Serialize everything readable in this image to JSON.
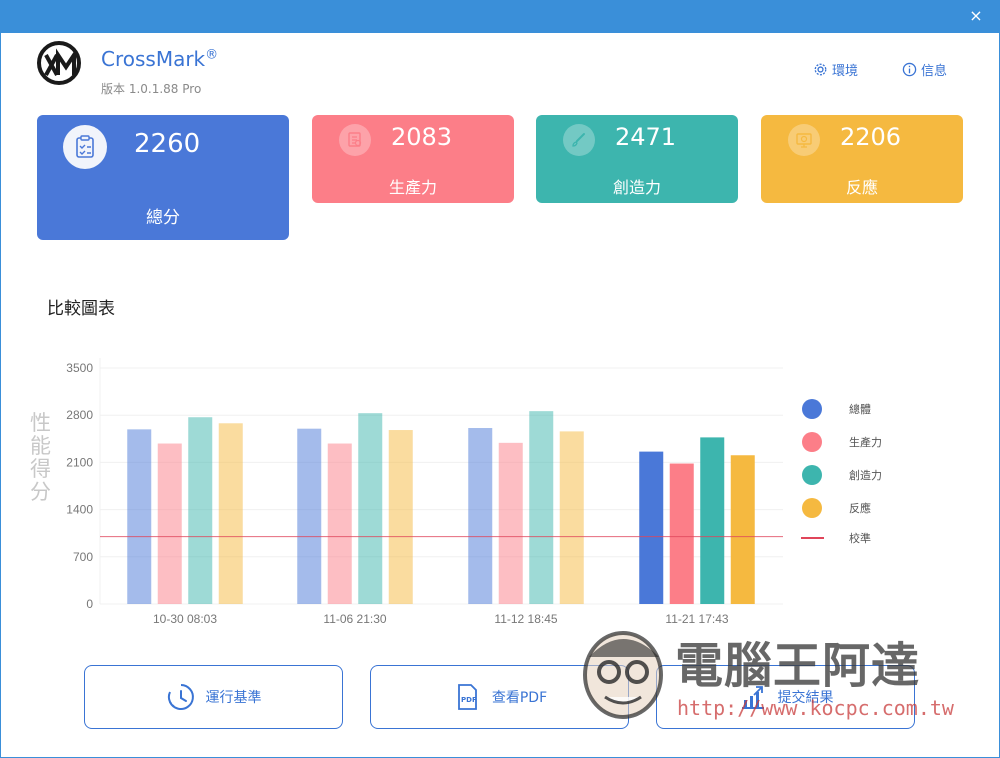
{
  "window": {
    "close_label": "×"
  },
  "app": {
    "name": "CrossMark",
    "reg": "®",
    "version": "版本 1.0.1.88 Pro"
  },
  "toplinks": {
    "env": "環境",
    "info": "信息"
  },
  "cards": {
    "total": {
      "score": "2260",
      "label": "總分",
      "color": "#4a78d8"
    },
    "productivity": {
      "score": "2083",
      "label": "生產力",
      "color": "#fc7e88"
    },
    "creativity": {
      "score": "2471",
      "label": "創造力",
      "color": "#3db5ae"
    },
    "responsiveness": {
      "score": "2206",
      "label": "反應",
      "color": "#f5b940"
    }
  },
  "section": {
    "title": "比較圖表"
  },
  "chart_data": {
    "type": "bar",
    "ylabel": "性能得分",
    "ylim": [
      0,
      3500
    ],
    "yticks": [
      0,
      700,
      1400,
      2100,
      2800,
      3500
    ],
    "categories": [
      "10-30 08:03",
      "11-06 21:30",
      "11-12 18:45",
      "11-21 17:43"
    ],
    "series": [
      {
        "name": "總體",
        "color": "#4a78d8",
        "values": [
          2590,
          2600,
          2610,
          2260
        ]
      },
      {
        "name": "生產力",
        "color": "#fc7e88",
        "values": [
          2380,
          2380,
          2390,
          2083
        ]
      },
      {
        "name": "創造力",
        "color": "#3db5ae",
        "values": [
          2770,
          2830,
          2860,
          2471
        ]
      },
      {
        "name": "反應",
        "color": "#f5b940",
        "values": [
          2680,
          2580,
          2560,
          2206
        ]
      }
    ],
    "baseline": {
      "name": "校準",
      "value": 1000,
      "color": "#e0455a"
    },
    "highlight_index": 3,
    "legend_position": "right",
    "grid": true
  },
  "buttons": {
    "run": "運行基準",
    "pdf": "查看PDF",
    "submit": "提交結果"
  },
  "watermark": {
    "text": "電腦王阿達",
    "url": "http://www.kocpc.com.tw"
  }
}
